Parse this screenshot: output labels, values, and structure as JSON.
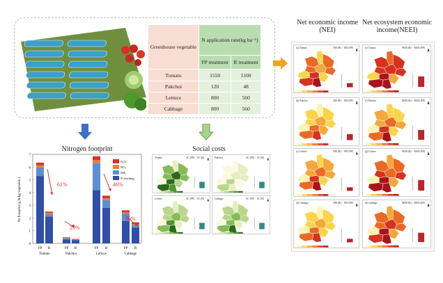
{
  "table": {
    "header_vegetable": "Greenhouse vegetable",
    "header_rate": "N application rate(kg ha⁻¹)",
    "col_fp": "FP treatment",
    "col_r": "R treatment",
    "rows": [
      {
        "veg": "Tomato",
        "fp": "1550",
        "r": "1100"
      },
      {
        "veg": "Pakchoi",
        "fp": "120",
        "r": "48"
      },
      {
        "veg": "Lettuce",
        "fp": "800",
        "r": "560"
      },
      {
        "veg": "Cabbage",
        "fp": "800",
        "r": "560"
      }
    ]
  },
  "titles": {
    "nei": "Net economic income (NEI)",
    "neei": "Net ecosystem economic income(NEEI)",
    "social": "Social costs"
  },
  "arrows": {
    "blue": "#3d6fc4",
    "green": "#8cbf6a",
    "orange": "#f2a31b"
  },
  "chart_data": {
    "type": "bar",
    "title": "Nitrogen footprint",
    "ylabel": "Nr footprint (g N/kg vegetable )",
    "ylim": [
      0,
      7
    ],
    "yticks": [
      "0",
      "1",
      "2",
      "3",
      "4",
      "5",
      "6",
      "7"
    ],
    "stacked": true,
    "groups": [
      "Tomato",
      "Pakchoi",
      "Lettuce",
      "Cabbage"
    ],
    "bars": [
      "FP",
      "R"
    ],
    "series": [
      {
        "name": "N leaching",
        "color": "#2f4fa8",
        "values": [
          [
            5.3,
            2.1
          ],
          [
            0.3,
            0.25
          ],
          [
            4.2,
            2.8
          ],
          [
            1.75,
            1.25
          ]
        ]
      },
      {
        "name": "NH₃",
        "color": "#5b8fd0",
        "values": [
          [
            0.7,
            0.2
          ],
          [
            0.1,
            0.05
          ],
          [
            2.1,
            0.6
          ],
          [
            0.6,
            0.2
          ]
        ]
      },
      {
        "name": "NOₓ",
        "color": "#f07a3a",
        "values": [
          [
            0.15,
            0.1
          ],
          [
            0.03,
            0.02
          ],
          [
            0.25,
            0.15
          ],
          [
            0.1,
            0.08
          ]
        ]
      },
      {
        "name": "N₂O",
        "color": "#d9302a",
        "values": [
          [
            0.2,
            0.1
          ],
          [
            0.05,
            0.03
          ],
          [
            0.3,
            0.2
          ],
          [
            0.15,
            0.12
          ]
        ]
      }
    ],
    "annotations": [
      "61%",
      "29%",
      "46%",
      "36%"
    ],
    "annotation_color": "#d9302a",
    "legend": "top-right"
  },
  "palettes": {
    "orange": [
      "#fff3b0",
      "#f9d54a",
      "#f4a73a",
      "#ea6a25",
      "#d6321e",
      "#a8141a"
    ],
    "green": [
      "#fbf8e0",
      "#e8edc0",
      "#b9d68a",
      "#86bb57",
      "#4f962f",
      "#2b6b1e"
    ]
  },
  "nei_maps": [
    {
      "label": "(a) Tomato",
      "formula": "NEI (R) − NEI (FP)",
      "levels": [
        1,
        3,
        3,
        3,
        2,
        3,
        1,
        4,
        1,
        4,
        5
      ],
      "bar": 0.35
    },
    {
      "label": "(b) Pakchoi",
      "formula": "NEI (R) − NEI (FP)",
      "levels": [
        0,
        1,
        1,
        1,
        2,
        1,
        0,
        3,
        2,
        3,
        4
      ],
      "bar": 0.5
    },
    {
      "label": "(c) Lettuce",
      "formula": "NEI (R) − NEI (FP)",
      "levels": [
        1,
        2,
        2,
        2,
        3,
        2,
        0,
        4,
        1,
        3,
        5
      ],
      "bar": 0.3
    },
    {
      "label": "(d) Cabbage",
      "formula": "NEI (R) − NEI (FP)",
      "levels": [
        0,
        1,
        1,
        1,
        2,
        1,
        0,
        3,
        1,
        3,
        4
      ],
      "bar": 0.3
    }
  ],
  "neei_maps": [
    {
      "label": "(e) Tomato",
      "formula": "NEEI (R) − NEEI (FP)",
      "levels": [
        3,
        4,
        4,
        4,
        4,
        4,
        1,
        5,
        2,
        5,
        5
      ],
      "bar": 0.85
    },
    {
      "label": "(f) Pakchoi",
      "formula": "NEEI (R) − NEEI (FP)",
      "levels": [
        1,
        2,
        1,
        2,
        3,
        2,
        0,
        4,
        1,
        3,
        5
      ],
      "bar": 0.8
    },
    {
      "label": "(g) Lettuce",
      "formula": "NEEI (R) − NEEI (FP)",
      "levels": [
        2,
        3,
        3,
        4,
        3,
        4,
        0,
        5,
        2,
        5,
        5
      ],
      "bar": 0.85
    },
    {
      "label": "(h) Cabbage",
      "formula": "NEEI (R) − NEEI (FP)",
      "levels": [
        2,
        3,
        3,
        3,
        4,
        3,
        0,
        5,
        2,
        4,
        5
      ],
      "bar": 0.75
    }
  ],
  "sc_maps": [
    {
      "label": "Tomato",
      "formula": "SC (FP) − SC (R)",
      "levels": [
        1,
        3,
        3,
        3,
        5,
        3,
        0,
        5,
        2,
        5,
        4
      ],
      "bar": 0.6
    },
    {
      "label": "Pakchoi",
      "formula": "SC (FP) − SC (R)",
      "levels": [
        0,
        0,
        1,
        0,
        1,
        1,
        0,
        2,
        0,
        2,
        1
      ],
      "bar": 0.6
    },
    {
      "label": "Lettuce",
      "formula": "SC (FP) − SC (R)",
      "levels": [
        1,
        2,
        2,
        2,
        3,
        2,
        0,
        4,
        1,
        3,
        5
      ],
      "bar": 0.6
    },
    {
      "label": "Cabbage",
      "formula": "SC (FP) − SC (R)",
      "levels": [
        1,
        2,
        2,
        2,
        3,
        2,
        0,
        3,
        1,
        3,
        5
      ],
      "bar": 0.6
    }
  ]
}
